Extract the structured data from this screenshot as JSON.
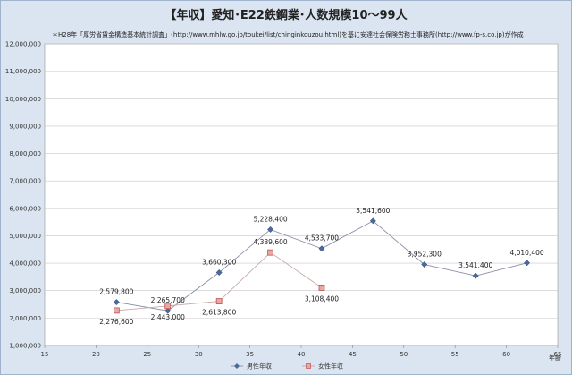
{
  "chart_data": {
    "type": "line",
    "title": "【年収】愛知･E22鉄鋼業･人数規模10～99人",
    "subtitle": "＊H28年「厚労省賃金構造基本統計調査」(http://www.mhlw.go.jp/toukei/list/chinginkouzou.html)を基に安達社会保険労務士事務所(http://www.fp-s.co.jp)が作成",
    "xlabel": "年齢",
    "ylabel": "",
    "xlim": [
      15,
      65
    ],
    "ylim": [
      1000000,
      12000000
    ],
    "x_ticks": [
      15,
      20,
      25,
      30,
      35,
      40,
      45,
      50,
      55,
      60,
      65
    ],
    "y_ticks": [
      1000000,
      2000000,
      3000000,
      4000000,
      5000000,
      6000000,
      7000000,
      8000000,
      9000000,
      10000000,
      11000000,
      12000000
    ],
    "x_tick_labels": [
      "15",
      "20",
      "25",
      "30",
      "35",
      "40",
      "45",
      "50",
      "55",
      "60",
      "65"
    ],
    "y_tick_labels": [
      "1,000,000",
      "2,000,000",
      "3,000,000",
      "4,000,000",
      "5,000,000",
      "6,000,000",
      "7,000,000",
      "8,000,000",
      "9,000,000",
      "10,000,000",
      "11,000,000",
      "12,000,000"
    ],
    "grid": true,
    "legend_position": "bottom",
    "series": [
      {
        "name": "男性年収",
        "color": "#4a6a9b",
        "marker": "diamond",
        "x": [
          22,
          27,
          32,
          37,
          42,
          47,
          52,
          57,
          62
        ],
        "y": [
          2579800,
          2265700,
          3660300,
          5228400,
          4533700,
          5541600,
          3952300,
          3541400,
          4010400
        ],
        "labels": [
          "2,579,800",
          "2,265,700",
          "3,660,300",
          "5,228,400",
          "4,533,700",
          "5,541,600",
          "3,952,300",
          "3,541,400",
          "4,010,400"
        ]
      },
      {
        "name": "女性年収",
        "color": "#c0504d",
        "marker": "square",
        "x": [
          22,
          27,
          32,
          37,
          42
        ],
        "y": [
          2276600,
          2443000,
          2613800,
          4389600,
          3108400
        ],
        "labels": [
          "2,276,600",
          "2,443,000",
          "2,613,800",
          "4,389,600",
          "3,108,400"
        ]
      }
    ]
  }
}
